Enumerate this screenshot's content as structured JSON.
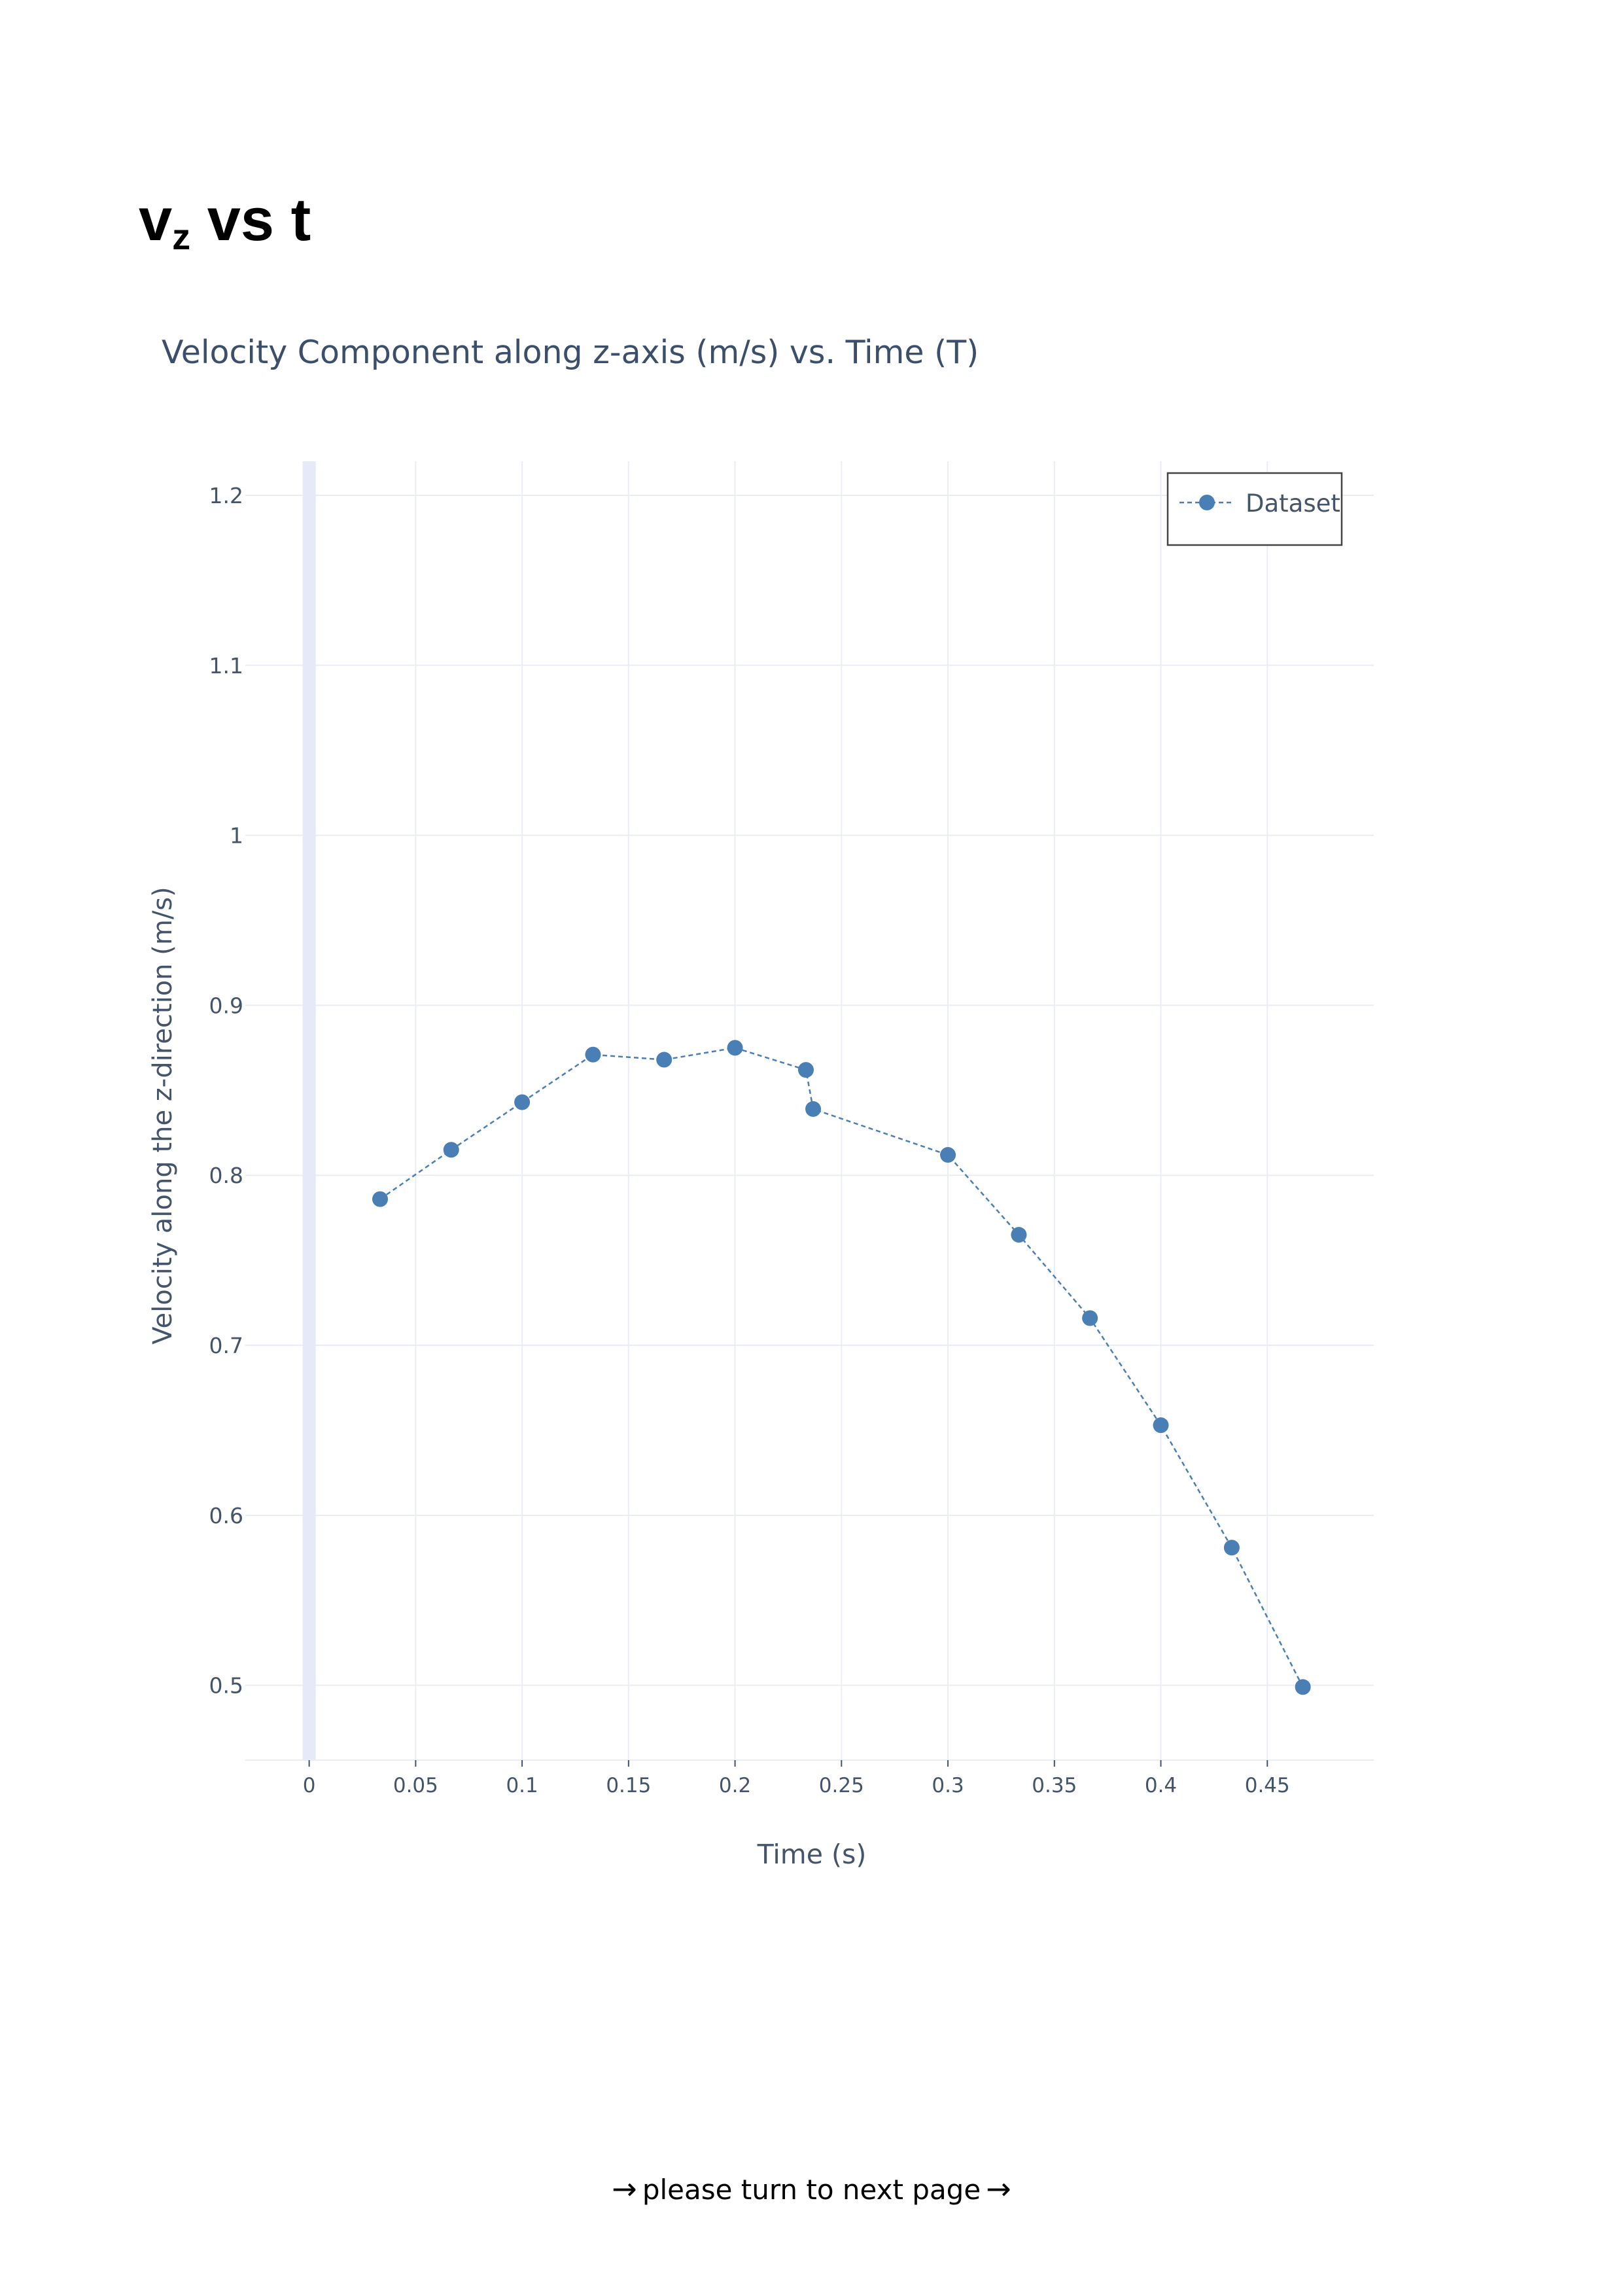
{
  "heading": {
    "base": "v",
    "subscript": "z",
    "rest": " vs t"
  },
  "footer": {
    "arrow_glyph": "→",
    "text": "please turn to next page"
  },
  "colors": {
    "series": "#4a7fb5",
    "axis_text": "#44546a",
    "title_text": "#3b4f6b",
    "grid": "#eaeef4",
    "zero_line": "#e6e9f8",
    "legend_border": "#444444"
  },
  "chart_data": {
    "type": "scatter",
    "mode": "lines+markers",
    "line_style": "dashed",
    "title": "Velocity Component along z-axis (m/s) vs. Time (T)",
    "xlabel": "Time (s)",
    "ylabel": "Velocity along the z-direction (m/s)",
    "xlim": [
      -0.03,
      0.5
    ],
    "ylim": [
      0.456,
      1.22
    ],
    "xticks": [
      0,
      0.05,
      0.1,
      0.15,
      0.2,
      0.25,
      0.3,
      0.35,
      0.4,
      0.45
    ],
    "xtick_labels": [
      "0",
      "0.05",
      "0.1",
      "0.15",
      "0.2",
      "0.25",
      "0.3",
      "0.35",
      "0.4",
      "0.45"
    ],
    "yticks": [
      0.5,
      0.6,
      0.7,
      0.8,
      0.9,
      1,
      1.1,
      1.2
    ],
    "ytick_labels": [
      "0.5",
      "0.6",
      "0.7",
      "0.8",
      "0.9",
      "1",
      "1.1",
      "1.2"
    ],
    "grid": true,
    "legend_position": "top-right",
    "series": [
      {
        "name": "Dataset",
        "x": [
          0.0333,
          0.0667,
          0.1,
          0.1333,
          0.1667,
          0.2,
          0.2333,
          0.2367,
          0.3,
          0.3333,
          0.3667,
          0.4,
          0.4333,
          0.4667
        ],
        "y": [
          0.786,
          0.815,
          0.843,
          0.871,
          0.868,
          0.875,
          0.862,
          0.839,
          0.812,
          0.765,
          0.716,
          0.653,
          0.581,
          0.499
        ]
      }
    ]
  }
}
